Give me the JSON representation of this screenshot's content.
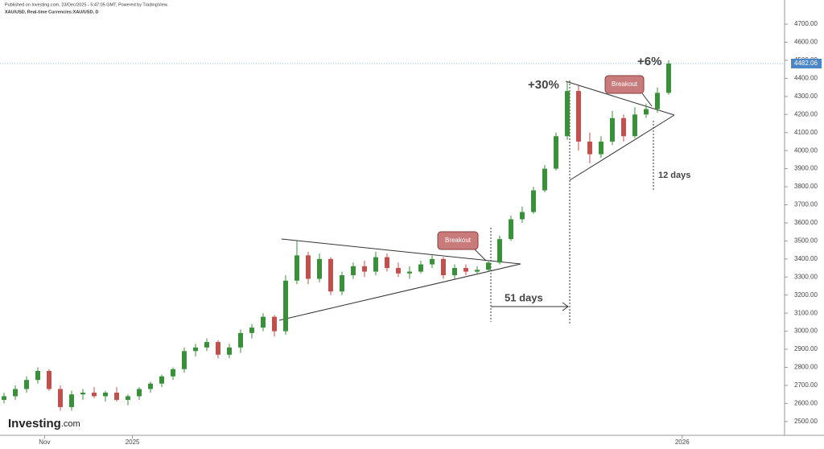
{
  "header": {
    "published": "Published on Investing.com, 23/Dec/2025 - 5:47:05 GMT, Powered by TradingView.",
    "symbol": "XAU/USD, Real-time Currencies:XAU/USD, D"
  },
  "logo": {
    "brand": "Investing",
    "suffix": ".com"
  },
  "chart_data": {
    "type": "candlestick",
    "up_color": "#3a8f3a",
    "down_color": "#c0504d",
    "open": [
      2620,
      2640,
      2680,
      2730,
      2780,
      2680,
      2580,
      2650,
      2660,
      2640,
      2660,
      2620,
      2640,
      2680,
      2710,
      2750,
      2790,
      2890,
      2910,
      2940,
      2870,
      2910,
      2990,
      3020,
      3080,
      3000,
      3280,
      3420,
      3290,
      3400,
      3220,
      3310,
      3360,
      3330,
      3410,
      3350,
      3320,
      3330,
      3370,
      3400,
      3310,
      3350,
      3330,
      3340,
      3380,
      3510,
      3620,
      3660,
      3780,
      3900,
      4080,
      4330,
      4050,
      3980,
      4050,
      4180,
      4080,
      4200,
      4230,
      4320
    ],
    "high": [
      2660,
      2700,
      2750,
      2800,
      2790,
      2700,
      2670,
      2680,
      2690,
      2670,
      2690,
      2650,
      2690,
      2720,
      2760,
      2800,
      2910,
      2930,
      2960,
      2950,
      2930,
      3010,
      3040,
      3100,
      3090,
      3310,
      3500,
      3440,
      3430,
      3410,
      3330,
      3380,
      3390,
      3440,
      3430,
      3380,
      3360,
      3390,
      3420,
      3410,
      3370,
      3370,
      3360,
      3390,
      3530,
      3640,
      3690,
      3800,
      3920,
      4100,
      4380,
      4360,
      4100,
      4080,
      4220,
      4200,
      4240,
      4260,
      4350,
      4500
    ],
    "low": [
      2600,
      2620,
      2660,
      2710,
      2670,
      2560,
      2560,
      2620,
      2630,
      2610,
      2610,
      2590,
      2620,
      2660,
      2690,
      2730,
      2770,
      2860,
      2890,
      2850,
      2850,
      2880,
      2960,
      3000,
      2970,
      2980,
      3260,
      3260,
      3270,
      3200,
      3200,
      3290,
      3300,
      3310,
      3330,
      3300,
      3290,
      3320,
      3350,
      3290,
      3290,
      3310,
      3320,
      3330,
      3370,
      3500,
      3600,
      3650,
      3770,
      3890,
      4060,
      4000,
      3930,
      3960,
      4030,
      4050,
      4070,
      4180,
      4210,
      4310
    ],
    "close": [
      2640,
      2680,
      2730,
      2780,
      2680,
      2580,
      2650,
      2660,
      2640,
      2660,
      2620,
      2640,
      2680,
      2710,
      2750,
      2790,
      2890,
      2910,
      2940,
      2870,
      2910,
      2990,
      3020,
      3080,
      3000,
      3280,
      3420,
      3290,
      3400,
      3220,
      3310,
      3360,
      3330,
      3410,
      3350,
      3320,
      3330,
      3370,
      3400,
      3310,
      3350,
      3330,
      3340,
      3380,
      3510,
      3620,
      3660,
      3780,
      3900,
      4080,
      4330,
      4050,
      3980,
      4050,
      4180,
      4080,
      4200,
      4230,
      4320,
      4482.06
    ],
    "xlim": [
      -0.357,
      69.29
    ],
    "xticks": [
      {
        "value": 3.6,
        "label": "Nov"
      },
      {
        "value": 11.4,
        "label": "2025"
      },
      {
        "value": 60.2,
        "label": "2026"
      }
    ],
    "ylim": [
      2428,
      4834
    ],
    "yticks": [
      {
        "value": 2500,
        "label": "2500.00"
      },
      {
        "value": 2600,
        "label": "2600.00"
      },
      {
        "value": 2700,
        "label": "2700.00"
      },
      {
        "value": 2800,
        "label": "2800.00"
      },
      {
        "value": 2900,
        "label": "2900.00"
      },
      {
        "value": 3000,
        "label": "3000.00"
      },
      {
        "value": 3100,
        "label": "3100.00"
      },
      {
        "value": 3200,
        "label": "3200.00"
      },
      {
        "value": 3300,
        "label": "3300.00"
      },
      {
        "value": 3400,
        "label": "3400.00"
      },
      {
        "value": 3500,
        "label": "3500.00"
      },
      {
        "value": 3600,
        "label": "3600.00"
      },
      {
        "value": 3700,
        "label": "3700.00"
      },
      {
        "value": 3800,
        "label": "3800.00"
      },
      {
        "value": 3900,
        "label": "3900.00"
      },
      {
        "value": 4000,
        "label": "4000.00"
      },
      {
        "value": 4100,
        "label": "4100.00"
      },
      {
        "value": 4200,
        "label": "4200.00"
      },
      {
        "value": 4300,
        "label": "4300.00"
      },
      {
        "value": 4400,
        "label": "4400.00"
      },
      {
        "value": 4500,
        "label": "4500.00"
      },
      {
        "value": 4600,
        "label": "4600.00"
      },
      {
        "value": 4700,
        "label": "4700.00"
      }
    ],
    "last_price": 4482.06,
    "annotations": {
      "gain1": "+30%",
      "gain2": "+6%",
      "days1": "51 days",
      "days2": "12 days",
      "breakout1": "Breakout",
      "breakout2": "Breakout"
    }
  }
}
